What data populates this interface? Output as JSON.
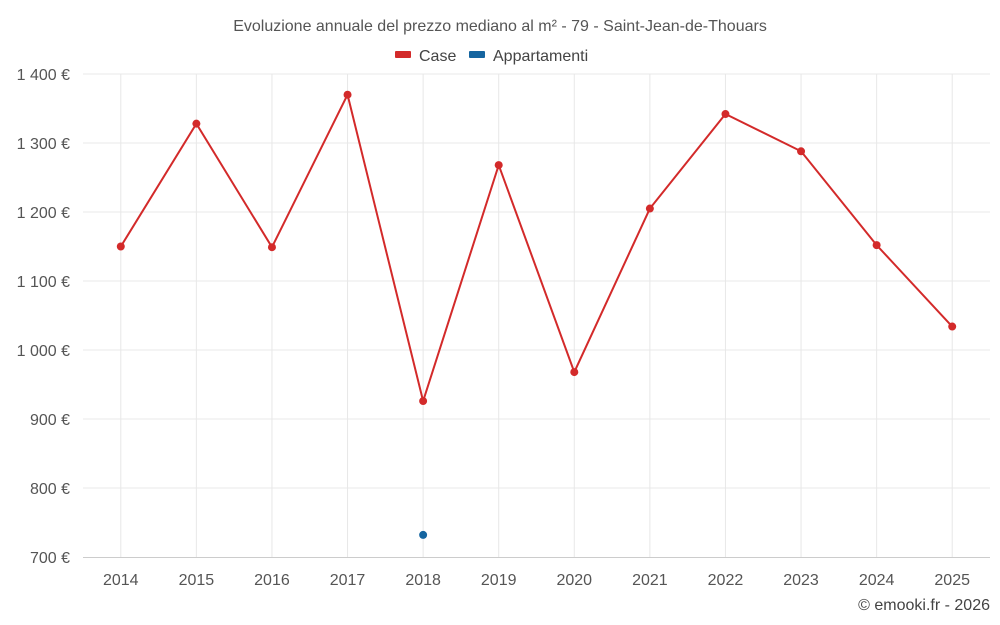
{
  "chart_data": {
    "type": "line",
    "title": "Evoluzione annuale del prezzo mediano al m² - 79 - Saint-Jean-de-Thouars",
    "categories": [
      "2014",
      "2015",
      "2016",
      "2017",
      "2018",
      "2019",
      "2020",
      "2021",
      "2022",
      "2023",
      "2024",
      "2025"
    ],
    "series": [
      {
        "name": "Case",
        "color": "#d32a2a",
        "values": [
          1150,
          1328,
          1149,
          1370,
          926,
          1268,
          968,
          1205,
          1342,
          1288,
          1152,
          1034
        ]
      },
      {
        "name": "Appartamenti",
        "color": "#1565a0",
        "values": [
          null,
          null,
          null,
          null,
          732,
          null,
          null,
          null,
          null,
          null,
          null,
          null
        ]
      }
    ],
    "ylim": [
      700,
      1400
    ],
    "yticks": [
      700,
      800,
      900,
      1000,
      1100,
      1200,
      1300,
      1400
    ],
    "ytick_labels": [
      "700 €",
      "800 €",
      "900 €",
      "1 000 €",
      "1 100 €",
      "1 200 €",
      "1 300 €",
      "1 400 €"
    ],
    "xlabel": "",
    "ylabel": "",
    "legend_position": "top-center",
    "grid": true
  },
  "credit": "© emooki.fr - 2026"
}
